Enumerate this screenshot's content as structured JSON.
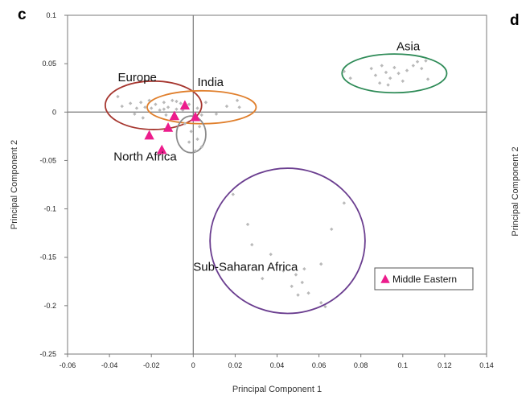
{
  "panels": {
    "left": "c",
    "right": "d"
  },
  "right_panel_ylabel": "Principal Component 2",
  "colors": {
    "axis": "#7a7a7a",
    "points": "#b9b9b9",
    "marker": "#ec1c8c",
    "europe": "#a6362f",
    "india": "#e07f2c",
    "north_africa": "#8c8c8c",
    "asia": "#2e8b57",
    "subsaharan": "#6a3d8f"
  },
  "chart_data": {
    "type": "scatter",
    "xlabel": "Principal Component 1",
    "ylabel": "Principal Component 2",
    "xlim": [
      -0.06,
      0.14
    ],
    "ylim": [
      -0.25,
      0.1
    ],
    "x_ticks": [
      -0.06,
      -0.04,
      -0.02,
      0,
      0.02,
      0.04,
      0.06,
      0.08,
      0.1,
      0.12,
      0.14
    ],
    "y_ticks": [
      0.1,
      0.05,
      0,
      -0.05,
      -0.1,
      -0.15,
      -0.2,
      -0.25
    ],
    "groups": [
      {
        "label": "Europe",
        "label_pos": [
          -0.036,
          0.032
        ],
        "ellipse": {
          "cx": -0.019,
          "cy": 0.007,
          "rx": 0.023,
          "ry": 0.025
        },
        "color_key": "europe",
        "points": [
          [
            -0.036,
            0.016
          ],
          [
            -0.034,
            0.006
          ],
          [
            -0.03,
            0.009
          ],
          [
            -0.027,
            0.004
          ],
          [
            -0.025,
            0.01
          ],
          [
            -0.023,
            0.005
          ],
          [
            -0.021,
            0.012
          ],
          [
            -0.02,
            0.004
          ],
          [
            -0.018,
            0.008
          ],
          [
            -0.016,
            0.002
          ],
          [
            -0.014,
            0.01
          ],
          [
            -0.012,
            0.005
          ],
          [
            -0.01,
            0.012
          ],
          [
            -0.008,
            0.003
          ],
          [
            -0.006,
            0.009
          ],
          [
            -0.005,
            0.002
          ],
          [
            -0.028,
            -0.002
          ],
          [
            -0.024,
            -0.006
          ],
          [
            -0.013,
            -0.003
          ]
        ]
      },
      {
        "label": "India",
        "label_pos": [
          0.002,
          0.027
        ],
        "ellipse": {
          "cx": 0.004,
          "cy": 0.005,
          "rx": 0.026,
          "ry": 0.017
        },
        "color_key": "india",
        "points": [
          [
            -0.014,
            0.003
          ],
          [
            -0.008,
            0.011
          ],
          [
            -0.002,
            0.008
          ],
          [
            0.002,
            0.004
          ],
          [
            0.006,
            0.01
          ],
          [
            0.011,
            -0.002
          ],
          [
            0.016,
            0.006
          ],
          [
            0.021,
            0.012
          ],
          [
            0.022,
            0.005
          ],
          [
            0.004,
            -0.003
          ]
        ]
      },
      {
        "label": "North Africa",
        "label_pos": [
          -0.038,
          -0.05
        ],
        "ellipse": {
          "cx": -0.001,
          "cy": -0.023,
          "rx": 0.007,
          "ry": 0.019
        },
        "color_key": "north_africa",
        "points": [
          [
            -0.004,
            -0.012
          ],
          [
            -0.001,
            -0.02
          ],
          [
            0.002,
            -0.028
          ],
          [
            0.004,
            -0.036
          ],
          [
            -0.002,
            -0.031
          ],
          [
            0.001,
            -0.04
          ],
          [
            0.003,
            -0.015
          ]
        ]
      },
      {
        "label": "Asia",
        "label_pos": [
          0.097,
          0.064
        ],
        "ellipse": {
          "cx": 0.096,
          "cy": 0.04,
          "rx": 0.025,
          "ry": 0.02
        },
        "color_key": "asia",
        "points": [
          [
            0.072,
            0.042
          ],
          [
            0.075,
            0.035
          ],
          [
            0.085,
            0.045
          ],
          [
            0.087,
            0.038
          ],
          [
            0.089,
            0.03
          ],
          [
            0.09,
            0.048
          ],
          [
            0.092,
            0.041
          ],
          [
            0.094,
            0.035
          ],
          [
            0.096,
            0.046
          ],
          [
            0.098,
            0.04
          ],
          [
            0.1,
            0.032
          ],
          [
            0.102,
            0.043
          ],
          [
            0.105,
            0.048
          ],
          [
            0.107,
            0.052
          ],
          [
            0.109,
            0.045
          ],
          [
            0.111,
            0.053
          ],
          [
            0.112,
            0.034
          ],
          [
            0.093,
            0.028
          ]
        ]
      },
      {
        "label": "Sub-Saharan Africa",
        "label_pos": [
          0.0,
          -0.164
        ],
        "ellipse": {
          "cx": 0.045,
          "cy": -0.133,
          "rx": 0.037,
          "ry": 0.075
        },
        "color_key": "subsaharan",
        "points": [
          [
            0.019,
            -0.085
          ],
          [
            0.026,
            -0.116
          ],
          [
            0.028,
            -0.137
          ],
          [
            0.033,
            -0.172
          ],
          [
            0.037,
            -0.147
          ],
          [
            0.043,
            -0.164
          ],
          [
            0.047,
            -0.18
          ],
          [
            0.049,
            -0.168
          ],
          [
            0.05,
            -0.189
          ],
          [
            0.052,
            -0.176
          ],
          [
            0.053,
            -0.162
          ],
          [
            0.055,
            -0.187
          ],
          [
            0.061,
            -0.157
          ],
          [
            0.061,
            -0.197
          ],
          [
            0.063,
            -0.201
          ],
          [
            0.066,
            -0.121
          ],
          [
            0.072,
            -0.094
          ]
        ]
      }
    ],
    "highlight_series": {
      "name": "Middle Eastern",
      "marker": "triangle",
      "points": [
        [
          -0.021,
          -0.024
        ],
        [
          -0.015,
          -0.039
        ],
        [
          -0.012,
          -0.016
        ],
        [
          -0.009,
          -0.004
        ],
        [
          -0.004,
          0.007
        ],
        [
          0.001,
          -0.005
        ]
      ]
    },
    "legend": {
      "label": "Middle Eastern",
      "position": "bottom-right"
    }
  }
}
